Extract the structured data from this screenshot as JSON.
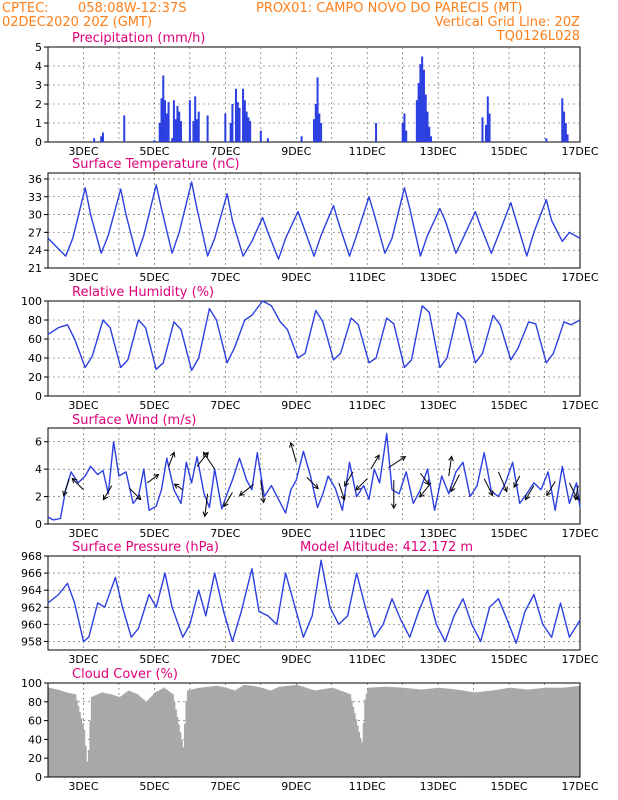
{
  "header": {
    "source": "CPTEC:",
    "coords": "058:08W-12:37S",
    "station": "PROX01: CAMPO NOVO DO PARECIS (MT)",
    "date": "02DEC2020 20Z (GMT)",
    "grid_note": "Vertical Grid Line: 20Z",
    "model": "TQ0126L028"
  },
  "x_ticks": [
    "3DEC",
    "5DEC",
    "7DEC",
    "9DEC",
    "11DEC",
    "13DEC",
    "15DEC",
    "17DEC"
  ],
  "colors": {
    "header": "#ff7f1a",
    "title": "#e0007a",
    "line": "#2c3fe0",
    "cloud": "#a8a8a8"
  },
  "chart_data": [
    {
      "id": "precip",
      "type": "bar",
      "title": "Precipitation (mm/h)",
      "ylim": [
        0,
        5
      ],
      "yticks": [
        0,
        1,
        2,
        3,
        4,
        5
      ],
      "x_unit": "day of Dec 2020 (UTC)",
      "x": [
        3.3,
        3.5,
        3.55,
        4.15,
        5.0,
        5.15,
        5.2,
        5.25,
        5.3,
        5.35,
        5.4,
        5.5,
        5.55,
        5.6,
        5.65,
        5.7,
        5.75,
        6.0,
        6.1,
        6.15,
        6.2,
        6.25,
        6.5,
        7.0,
        7.15,
        7.2,
        7.3,
        7.35,
        7.4,
        7.5,
        7.55,
        7.6,
        7.65,
        7.7,
        8.0,
        8.2,
        9.15,
        9.5,
        9.55,
        9.6,
        9.65,
        9.7,
        11.25,
        12.0,
        12.05,
        12.1,
        12.4,
        12.45,
        12.5,
        12.55,
        12.6,
        12.65,
        12.7,
        12.75,
        12.8,
        14.25,
        14.35,
        14.4,
        14.45,
        16.05,
        16.5,
        16.55,
        16.6,
        16.65
      ],
      "values": [
        0.2,
        0.3,
        0.5,
        1.4,
        0.1,
        1.0,
        2.3,
        3.5,
        2.2,
        1.5,
        2.1,
        0.2,
        2.2,
        1.2,
        1.9,
        1.6,
        1.1,
        2.2,
        1.1,
        2.4,
        1.2,
        1.6,
        1.4,
        1.5,
        1.0,
        2.0,
        2.8,
        2.1,
        1.8,
        2.8,
        2.2,
        1.6,
        1.3,
        1.1,
        0.6,
        0.2,
        0.3,
        1.2,
        2.0,
        3.4,
        1.5,
        1.0,
        1.0,
        1.0,
        1.5,
        0.6,
        2.2,
        3.1,
        4.1,
        4.5,
        3.8,
        2.5,
        1.6,
        0.8,
        0.3,
        1.3,
        0.9,
        2.4,
        1.5,
        0.2,
        2.3,
        1.6,
        1.0,
        0.4
      ]
    },
    {
      "id": "temp",
      "type": "line",
      "title": "Surface Temperature (nC)",
      "ylim": [
        21,
        37
      ],
      "yticks": [
        21,
        24,
        27,
        30,
        33,
        36
      ],
      "x_unit": "day of Dec 2020 (UTC)",
      "x": [
        2.0,
        2.25,
        2.5,
        2.7,
        3.05,
        3.2,
        3.5,
        3.7,
        4.05,
        4.2,
        4.5,
        4.7,
        5.05,
        5.2,
        5.5,
        5.7,
        6.05,
        6.2,
        6.5,
        6.7,
        7.05,
        7.2,
        7.5,
        7.75,
        8.05,
        8.2,
        8.5,
        8.7,
        9.05,
        9.2,
        9.5,
        9.7,
        10.05,
        10.2,
        10.5,
        10.7,
        11.05,
        11.2,
        11.5,
        11.7,
        12.05,
        12.2,
        12.5,
        12.7,
        13.05,
        13.2,
        13.5,
        13.7,
        14.05,
        14.2,
        14.5,
        14.7,
        15.05,
        15.2,
        15.5,
        15.7,
        16.05,
        16.2,
        16.5,
        16.7,
        17.0
      ],
      "values": [
        26.0,
        24.5,
        23.0,
        26.0,
        34.5,
        30.0,
        23.5,
        26.5,
        34.3,
        30.0,
        23.0,
        26.5,
        35.0,
        31.0,
        23.5,
        27.0,
        35.5,
        31.0,
        23.0,
        26.0,
        33.5,
        29.0,
        23.0,
        25.5,
        29.5,
        27.0,
        22.5,
        26.0,
        30.5,
        28.0,
        23.0,
        26.5,
        31.5,
        28.5,
        23.0,
        26.5,
        33.0,
        30.0,
        23.5,
        26.0,
        34.5,
        31.0,
        23.0,
        26.5,
        31.0,
        29.0,
        23.5,
        26.0,
        30.5,
        28.0,
        23.5,
        26.5,
        32.0,
        29.0,
        23.0,
        27.0,
        32.5,
        29.0,
        25.5,
        27.0,
        26.0
      ]
    },
    {
      "id": "rh",
      "type": "line",
      "title": "Relative Humidity (%)",
      "ylim": [
        0,
        100
      ],
      "yticks": [
        0,
        20,
        40,
        60,
        80,
        100
      ],
      "x_unit": "day of Dec 2020 (UTC)",
      "x": [
        2.0,
        2.3,
        2.55,
        2.75,
        3.05,
        3.25,
        3.55,
        3.75,
        4.05,
        4.25,
        4.55,
        4.75,
        5.05,
        5.25,
        5.55,
        5.75,
        6.05,
        6.25,
        6.55,
        6.75,
        7.05,
        7.25,
        7.55,
        7.75,
        8.05,
        8.3,
        8.55,
        8.75,
        9.05,
        9.25,
        9.55,
        9.75,
        10.05,
        10.25,
        10.55,
        10.75,
        11.05,
        11.25,
        11.55,
        11.75,
        12.05,
        12.25,
        12.55,
        12.75,
        13.05,
        13.25,
        13.55,
        13.75,
        14.05,
        14.25,
        14.55,
        14.75,
        15.05,
        15.25,
        15.55,
        15.75,
        16.05,
        16.25,
        16.55,
        16.75,
        17.0
      ],
      "values": [
        65,
        72,
        75,
        60,
        30,
        42,
        80,
        72,
        30,
        38,
        80,
        72,
        28,
        35,
        78,
        70,
        27,
        40,
        92,
        80,
        35,
        50,
        80,
        85,
        100,
        95,
        78,
        70,
        40,
        45,
        90,
        78,
        38,
        45,
        82,
        75,
        35,
        40,
        82,
        76,
        30,
        38,
        95,
        88,
        30,
        40,
        88,
        80,
        35,
        45,
        85,
        75,
        38,
        50,
        78,
        76,
        35,
        45,
        78,
        75,
        80
      ]
    },
    {
      "id": "wind",
      "type": "line",
      "title": "Surface Wind (m/s)",
      "ylim": [
        0,
        7
      ],
      "yticks": [
        0,
        2,
        4,
        6
      ],
      "x_unit": "day of Dec 2020 (UTC)",
      "x": [
        2.0,
        2.15,
        2.35,
        2.5,
        2.65,
        2.85,
        3.05,
        3.2,
        3.4,
        3.55,
        3.7,
        3.85,
        4.0,
        4.2,
        4.4,
        4.55,
        4.7,
        4.85,
        5.05,
        5.2,
        5.35,
        5.55,
        5.75,
        5.9,
        6.05,
        6.2,
        6.4,
        6.55,
        6.7,
        6.9,
        7.05,
        7.2,
        7.4,
        7.6,
        7.75,
        7.9,
        8.1,
        8.3,
        8.5,
        8.7,
        8.85,
        9.0,
        9.2,
        9.4,
        9.6,
        9.75,
        9.9,
        10.1,
        10.3,
        10.5,
        10.7,
        10.9,
        11.05,
        11.2,
        11.35,
        11.55,
        11.7,
        11.9,
        12.1,
        12.3,
        12.5,
        12.7,
        12.9,
        13.1,
        13.3,
        13.5,
        13.7,
        13.9,
        14.1,
        14.3,
        14.5,
        14.7,
        14.9,
        15.1,
        15.3,
        15.5,
        15.7,
        15.9,
        16.1,
        16.3,
        16.5,
        16.7,
        16.9,
        17.0
      ],
      "values": [
        0.5,
        0.3,
        0.4,
        2.5,
        3.8,
        3.0,
        3.5,
        4.2,
        3.6,
        3.9,
        2.2,
        6.0,
        3.5,
        3.8,
        1.5,
        2.0,
        4.0,
        1.0,
        1.3,
        2.5,
        4.8,
        2.5,
        1.5,
        4.5,
        3.0,
        4.9,
        2.2,
        1.2,
        4.0,
        1.1,
        2.2,
        3.2,
        4.8,
        3.2,
        2.5,
        5.2,
        2.0,
        2.8,
        1.8,
        0.8,
        2.5,
        3.2,
        5.3,
        3.5,
        1.2,
        2.2,
        3.5,
        2.6,
        1.0,
        4.5,
        2.0,
        2.8,
        1.8,
        4.0,
        3.0,
        6.6,
        2.5,
        2.2,
        3.8,
        1.5,
        2.5,
        4.0,
        1.0,
        3.5,
        2.2,
        3.8,
        4.5,
        2.0,
        2.8,
        5.2,
        2.4,
        2.0,
        3.0,
        4.5,
        1.5,
        2.2,
        3.0,
        2.5,
        3.8,
        1.0,
        4.2,
        1.5,
        3.0,
        1.2
      ],
      "vectors": [
        {
          "x": 2.6,
          "y": 3.3,
          "dx": -0.2,
          "dy": -0.6
        },
        {
          "x": 3.0,
          "y": 2.5,
          "dx": -0.4,
          "dy": 0.4
        },
        {
          "x": 3.8,
          "y": 2.8,
          "dx": -0.3,
          "dy": -0.5
        },
        {
          "x": 4.3,
          "y": 2.6,
          "dx": 0.4,
          "dy": -0.4
        },
        {
          "x": 4.8,
          "y": 3.0,
          "dx": 0.4,
          "dy": 0.3
        },
        {
          "x": 5.4,
          "y": 4.2,
          "dx": 0.2,
          "dy": 0.5
        },
        {
          "x": 5.8,
          "y": 2.5,
          "dx": -0.3,
          "dy": 0.2
        },
        {
          "x": 6.2,
          "y": 4.2,
          "dx": 0.4,
          "dy": 0.5
        },
        {
          "x": 6.5,
          "y": 2.2,
          "dx": -0.1,
          "dy": -0.8
        },
        {
          "x": 6.7,
          "y": 4.0,
          "dx": -0.4,
          "dy": 0.6
        },
        {
          "x": 7.2,
          "y": 2.3,
          "dx": -0.3,
          "dy": -0.5
        },
        {
          "x": 7.8,
          "y": 2.9,
          "dx": -0.5,
          "dy": -0.4
        },
        {
          "x": 8.0,
          "y": 3.2,
          "dx": 0.1,
          "dy": -0.8
        },
        {
          "x": 9.0,
          "y": 4.5,
          "dx": -0.2,
          "dy": 0.7
        },
        {
          "x": 9.3,
          "y": 3.4,
          "dx": 0.4,
          "dy": -0.4
        },
        {
          "x": 10.2,
          "y": 3.0,
          "dx": 0.2,
          "dy": -0.6
        },
        {
          "x": 10.6,
          "y": 3.8,
          "dx": -0.3,
          "dy": -0.5
        },
        {
          "x": 11.0,
          "y": 3.3,
          "dx": -0.4,
          "dy": -0.4
        },
        {
          "x": 11.1,
          "y": 4.0,
          "dx": 0.3,
          "dy": 0.5
        },
        {
          "x": 11.6,
          "y": 4.1,
          "dx": 0.6,
          "dy": 0.4
        },
        {
          "x": 11.75,
          "y": 3.2,
          "dx": 0.0,
          "dy": -1.0
        },
        {
          "x": 12.5,
          "y": 3.7,
          "dx": 0.3,
          "dy": -0.4
        },
        {
          "x": 12.8,
          "y": 3.0,
          "dx": -0.4,
          "dy": -0.5
        },
        {
          "x": 13.3,
          "y": 3.5,
          "dx": 0.1,
          "dy": 0.7
        },
        {
          "x": 13.6,
          "y": 3.6,
          "dx": -0.3,
          "dy": -0.6
        },
        {
          "x": 14.3,
          "y": 3.3,
          "dx": 0.3,
          "dy": -0.6
        },
        {
          "x": 14.7,
          "y": 3.8,
          "dx": 0.3,
          "dy": -0.7
        },
        {
          "x": 15.3,
          "y": 3.5,
          "dx": -0.2,
          "dy": -0.4
        },
        {
          "x": 15.7,
          "y": 2.8,
          "dx": -0.3,
          "dy": -0.5
        },
        {
          "x": 16.3,
          "y": 3.1,
          "dx": -0.3,
          "dy": -0.5
        },
        {
          "x": 16.7,
          "y": 3.0,
          "dx": 0.3,
          "dy": -0.6
        },
        {
          "x": 16.95,
          "y": 2.8,
          "dx": -0.1,
          "dy": -0.5
        }
      ]
    },
    {
      "id": "pres",
      "type": "line",
      "title": "Surface Pressure (hPa)",
      "annotation": "Model Altitude: 412.172 m",
      "ylim": [
        957,
        968
      ],
      "yticks": [
        958,
        960,
        962,
        964,
        966,
        968
      ],
      "x_unit": "day of Dec 2020 (UTC)",
      "x": [
        2.0,
        2.3,
        2.55,
        2.75,
        3.0,
        3.15,
        3.4,
        3.6,
        3.9,
        4.1,
        4.35,
        4.55,
        4.85,
        5.05,
        5.3,
        5.5,
        5.8,
        6.0,
        6.25,
        6.45,
        6.7,
        6.95,
        7.2,
        7.45,
        7.75,
        7.95,
        8.2,
        8.45,
        8.7,
        8.9,
        9.2,
        9.45,
        9.7,
        9.95,
        10.2,
        10.45,
        10.7,
        10.95,
        11.2,
        11.45,
        11.7,
        11.95,
        12.2,
        12.45,
        12.7,
        12.95,
        13.2,
        13.45,
        13.7,
        13.95,
        14.2,
        14.45,
        14.7,
        14.95,
        15.2,
        15.45,
        15.7,
        15.95,
        16.2,
        16.45,
        16.7,
        17.0
      ],
      "values": [
        962.5,
        963.5,
        964.8,
        962.5,
        958.0,
        958.5,
        962.5,
        962.0,
        965.5,
        962.0,
        958.5,
        959.5,
        963.5,
        962.0,
        966.0,
        962.0,
        958.5,
        960.0,
        964.0,
        961.0,
        966.0,
        961.5,
        958.0,
        961.5,
        966.5,
        961.5,
        961.0,
        960.0,
        966.0,
        963.0,
        958.5,
        961.0,
        967.5,
        962.0,
        960.0,
        961.0,
        966.0,
        962.0,
        958.5,
        960.0,
        963.0,
        960.5,
        958.5,
        961.5,
        964.0,
        960.0,
        958.0,
        961.0,
        963.0,
        960.0,
        958.0,
        962.0,
        963.0,
        960.5,
        957.8,
        961.5,
        963.5,
        960.0,
        958.5,
        962.5,
        958.5,
        960.5
      ]
    },
    {
      "id": "cloud",
      "type": "area",
      "title": "Cloud Cover (%)",
      "ylim": [
        0,
        100
      ],
      "yticks": [
        0,
        20,
        40,
        60,
        80,
        100
      ],
      "x_unit": "day of Dec 2020 (UTC)",
      "x": [
        2.0,
        2.25,
        2.5,
        2.75,
        3.0,
        3.1,
        3.2,
        3.5,
        3.75,
        4.0,
        4.25,
        4.5,
        4.75,
        5.0,
        5.25,
        5.5,
        5.8,
        5.85,
        5.9,
        6.25,
        6.5,
        6.75,
        7.0,
        7.25,
        7.5,
        7.75,
        8.0,
        8.25,
        8.5,
        9.0,
        9.5,
        10.0,
        10.5,
        10.8,
        10.85,
        10.9,
        11.0,
        11.5,
        12.0,
        12.5,
        13.0,
        13.5,
        14.0,
        14.5,
        15.0,
        15.5,
        16.0,
        16.5,
        17.0
      ],
      "values": [
        95,
        93,
        90,
        88,
        50,
        10,
        85,
        90,
        88,
        85,
        92,
        88,
        80,
        90,
        95,
        88,
        30,
        70,
        92,
        95,
        96,
        97,
        95,
        92,
        98,
        97,
        95,
        92,
        96,
        98,
        92,
        95,
        88,
        40,
        35,
        80,
        95,
        96,
        95,
        93,
        95,
        93,
        90,
        92,
        95,
        93,
        95,
        95,
        97
      ]
    }
  ]
}
